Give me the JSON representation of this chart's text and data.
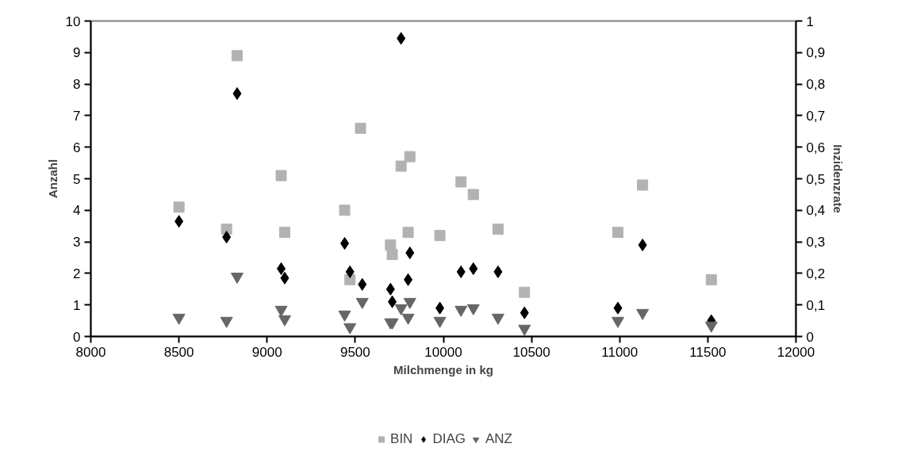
{
  "chart_data": {
    "type": "scatter",
    "xlabel": "Milchmenge in kg",
    "ylabel": "Anzahl",
    "y2label": "Inzidenzrate",
    "xlim": [
      8000,
      12000
    ],
    "xticks": [
      8000,
      8500,
      9000,
      9500,
      10000,
      10500,
      11000,
      11500,
      12000
    ],
    "ylim": [
      0,
      10
    ],
    "yticks": [
      0,
      1,
      2,
      3,
      4,
      5,
      6,
      7,
      8,
      9,
      10
    ],
    "y2lim": [
      0,
      1
    ],
    "y2ticks": [
      0,
      {
        "value": 0.1,
        "label": "0,1"
      },
      {
        "value": 0.2,
        "label": "0,2"
      },
      {
        "value": 0.3,
        "label": "0,3"
      },
      {
        "value": 0.4,
        "label": "0,4"
      },
      {
        "value": 0.5,
        "label": "0,5"
      },
      {
        "value": 0.6,
        "label": "0,6"
      },
      {
        "value": 0.7,
        "label": "0,7"
      },
      {
        "value": 0.8,
        "label": "0,8"
      },
      {
        "value": 0.9,
        "label": "0,9"
      },
      1
    ],
    "grid": false,
    "legend": "bottom",
    "series": [
      {
        "name": "BIN",
        "color": "#b2b2b2",
        "marker": "square",
        "x": [
          8500,
          8830,
          8770,
          9080,
          9100,
          9530,
          9440,
          9470,
          9760,
          9810,
          9700,
          9710,
          9800,
          9980,
          10100,
          10170,
          10310,
          10460,
          10990,
          11130,
          11520
        ],
        "values": [
          4.1,
          8.9,
          3.4,
          5.1,
          3.3,
          6.6,
          4.0,
          1.8,
          5.4,
          5.7,
          2.9,
          2.6,
          3.3,
          3.2,
          4.9,
          4.5,
          3.4,
          1.4,
          3.3,
          4.8,
          1.8
        ]
      },
      {
        "name": "DIAG",
        "color": "#000000",
        "marker": "diamond",
        "x": [
          8500,
          8770,
          8830,
          9080,
          9100,
          9760,
          9440,
          9470,
          9540,
          9700,
          9710,
          9810,
          9800,
          9980,
          10100,
          10170,
          10310,
          10460,
          10990,
          11130,
          11520
        ],
        "values": [
          3.65,
          3.15,
          7.7,
          2.15,
          1.85,
          9.45,
          2.95,
          2.05,
          1.65,
          1.5,
          1.1,
          2.65,
          1.8,
          0.9,
          2.05,
          2.15,
          2.05,
          0.75,
          0.9,
          2.9,
          0.5
        ]
      },
      {
        "name": "ANZ",
        "color": "#666666",
        "marker": "triangle_down",
        "x": [
          8500,
          8770,
          8830,
          9080,
          9100,
          9440,
          9470,
          9540,
          9700,
          9710,
          9760,
          9810,
          9800,
          9980,
          10100,
          10170,
          10310,
          10460,
          10990,
          11130,
          11520
        ],
        "values": [
          0.6,
          0.5,
          1.9,
          0.85,
          0.55,
          0.7,
          0.3,
          1.1,
          0.45,
          0.45,
          0.9,
          1.1,
          0.6,
          0.5,
          0.85,
          0.9,
          0.6,
          0.25,
          0.5,
          0.75,
          0.35
        ]
      }
    ]
  }
}
